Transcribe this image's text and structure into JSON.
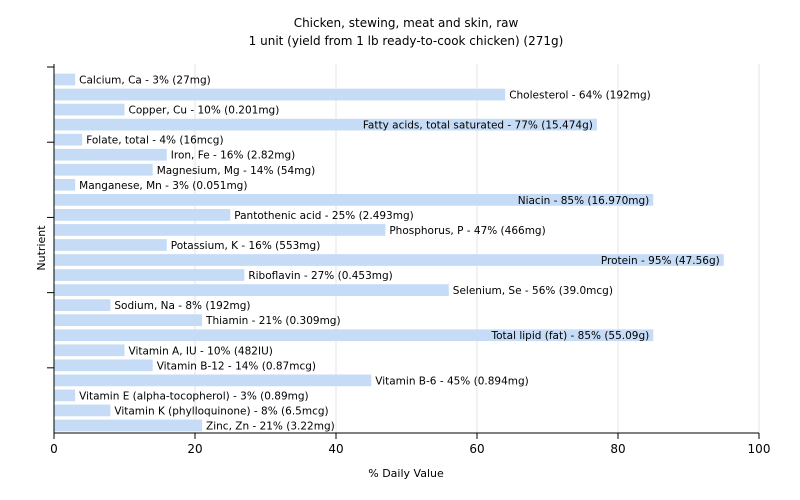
{
  "chart_data": {
    "type": "bar",
    "orientation": "horizontal",
    "title": "Chicken, stewing, meat and skin, raw",
    "subtitle": "1 unit (yield from 1 lb ready-to-cook chicken) (271g)",
    "xlabel": "% Daily Value",
    "ylabel": "Nutrient",
    "xlim": [
      0,
      100
    ],
    "xticks": [
      0,
      20,
      40,
      60,
      80,
      100
    ],
    "grid": true,
    "bar_color": "#c6dcf6",
    "grid_color": "#e4e4e4",
    "categories": [
      "Calcium, Ca",
      "Cholesterol",
      "Copper, Cu",
      "Fatty acids, total saturated",
      "Folate, total",
      "Iron, Fe",
      "Magnesium, Mg",
      "Manganese, Mn",
      "Niacin",
      "Pantothenic acid",
      "Phosphorus, P",
      "Potassium, K",
      "Protein",
      "Riboflavin",
      "Selenium, Se",
      "Sodium, Na",
      "Thiamin",
      "Total lipid (fat)",
      "Vitamin A, IU",
      "Vitamin B-12",
      "Vitamin B-6",
      "Vitamin E (alpha-tocopherol)",
      "Vitamin K (phylloquinone)",
      "Zinc, Zn"
    ],
    "values": [
      3,
      64,
      10,
      77,
      4,
      16,
      14,
      3,
      85,
      25,
      47,
      16,
      95,
      27,
      56,
      8,
      21,
      85,
      10,
      14,
      45,
      3,
      8,
      21
    ],
    "labels": [
      "Calcium, Ca - 3% (27mg)",
      "Cholesterol - 64% (192mg)",
      "Copper, Cu - 10% (0.201mg)",
      "Fatty acids, total saturated - 77% (15.474g)",
      "Folate, total - 4% (16mcg)",
      "Iron, Fe - 16% (2.82mg)",
      "Magnesium, Mg - 14% (54mg)",
      "Manganese, Mn - 3% (0.051mg)",
      "Niacin - 85% (16.970mg)",
      "Pantothenic acid - 25% (2.493mg)",
      "Phosphorus, P - 47% (466mg)",
      "Potassium, K - 16% (553mg)",
      "Protein - 95% (47.56g)",
      "Riboflavin - 27% (0.453mg)",
      "Selenium, Se - 56% (39.0mcg)",
      "Sodium, Na - 8% (192mg)",
      "Thiamin - 21% (0.309mg)",
      "Total lipid (fat) - 85% (55.09g)",
      "Vitamin A, IU - 10% (482IU)",
      "Vitamin B-12 - 14% (0.87mcg)",
      "Vitamin B-6 - 45% (0.894mg)",
      "Vitamin E (alpha-tocopherol) - 3% (0.89mg)",
      "Vitamin K (phylloquinone) - 8% (6.5mcg)",
      "Zinc, Zn - 21% (3.22mg)"
    ]
  }
}
